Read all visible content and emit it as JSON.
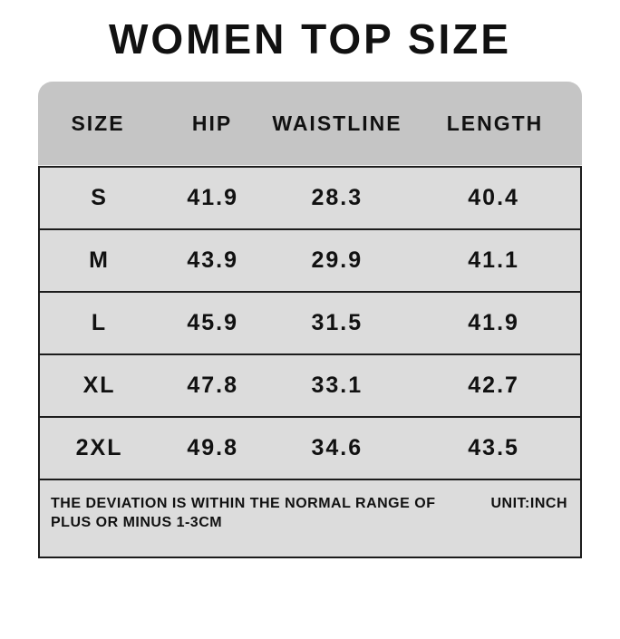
{
  "title": "WOMEN TOP SIZE",
  "chart_data": {
    "type": "table",
    "title": "WOMEN TOP SIZE",
    "columns": [
      "SIZE",
      "HIP",
      "WAISTLINE",
      "LENGTH"
    ],
    "rows": [
      [
        "S",
        "41.9",
        "28.3",
        "40.4"
      ],
      [
        "M",
        "43.9",
        "29.9",
        "41.1"
      ],
      [
        "L",
        "45.9",
        "31.5",
        "41.9"
      ],
      [
        "XL",
        "47.8",
        "33.1",
        "42.7"
      ],
      [
        "2XL",
        "49.8",
        "34.6",
        "43.5"
      ]
    ],
    "unit": "inch"
  },
  "footer": {
    "note": "THE DEVIATION IS WITHIN THE NORMAL RANGE OF PLUS OR MINUS 1-3CM",
    "unit_label": "UNIT:INCH"
  },
  "colors": {
    "header_bg": "#c5c5c5",
    "row_bg": "#dcdcdc",
    "border": "#1c1c1c",
    "text": "#111111",
    "background": "#ffffff"
  }
}
